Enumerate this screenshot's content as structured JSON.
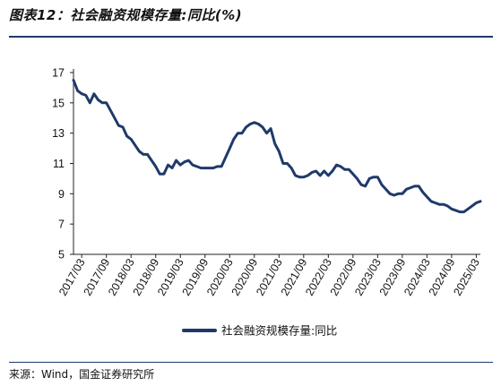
{
  "title": "图表12：社会融资规模存量:同比(%)",
  "source": "来源：Wind，国金证券研究所",
  "colors": {
    "line": "#1f3a6a",
    "rule": "#1f3a6a",
    "axis": "#222222"
  },
  "chart_data": {
    "type": "line",
    "title": "",
    "xlabel": "",
    "ylabel": "",
    "ylim": [
      5,
      17
    ],
    "yticks": [
      5,
      7,
      9,
      11,
      13,
      15,
      17
    ],
    "xticks": [
      "2017/03",
      "2017/09",
      "2018/03",
      "2018/09",
      "2019/03",
      "2019/09",
      "2020/03",
      "2020/09",
      "2021/03",
      "2021/09",
      "2022/03",
      "2022/09",
      "2023/03",
      "2023/09",
      "2024/03",
      "2024/09",
      "2025/03"
    ],
    "grid": false,
    "legend_position": "bottom-center",
    "series": [
      {
        "name": "社会融资规模存量:同比",
        "x": [
          "2017/01",
          "2017/02",
          "2017/03",
          "2017/04",
          "2017/05",
          "2017/06",
          "2017/07",
          "2017/08",
          "2017/09",
          "2017/10",
          "2017/11",
          "2017/12",
          "2018/01",
          "2018/02",
          "2018/03",
          "2018/04",
          "2018/05",
          "2018/06",
          "2018/07",
          "2018/08",
          "2018/09",
          "2018/10",
          "2018/11",
          "2018/12",
          "2019/01",
          "2019/02",
          "2019/03",
          "2019/04",
          "2019/05",
          "2019/06",
          "2019/07",
          "2019/08",
          "2019/09",
          "2019/10",
          "2019/11",
          "2019/12",
          "2020/01",
          "2020/02",
          "2020/03",
          "2020/04",
          "2020/05",
          "2020/06",
          "2020/07",
          "2020/08",
          "2020/09",
          "2020/10",
          "2020/11",
          "2020/12",
          "2021/01",
          "2021/02",
          "2021/03",
          "2021/04",
          "2021/05",
          "2021/06",
          "2021/07",
          "2021/08",
          "2021/09",
          "2021/10",
          "2021/11",
          "2021/12",
          "2022/01",
          "2022/02",
          "2022/03",
          "2022/04",
          "2022/05",
          "2022/06",
          "2022/07",
          "2022/08",
          "2022/09",
          "2022/10",
          "2022/11",
          "2022/12",
          "2023/01",
          "2023/02",
          "2023/03",
          "2023/04",
          "2023/05",
          "2023/06",
          "2023/07",
          "2023/08",
          "2023/09",
          "2023/10",
          "2023/11",
          "2023/12",
          "2024/01",
          "2024/02",
          "2024/03",
          "2024/04",
          "2024/05",
          "2024/06",
          "2024/07",
          "2024/08",
          "2024/09",
          "2024/10",
          "2024/11",
          "2024/12",
          "2025/01",
          "2025/02",
          "2025/03",
          "2025/04"
        ],
        "values": [
          16.5,
          15.8,
          15.6,
          15.5,
          15.0,
          15.6,
          15.2,
          15.0,
          15.0,
          14.5,
          14.0,
          13.5,
          13.4,
          12.8,
          12.6,
          12.2,
          11.8,
          11.6,
          11.6,
          11.2,
          10.8,
          10.3,
          10.3,
          10.9,
          10.7,
          11.2,
          10.9,
          11.1,
          11.2,
          10.9,
          10.8,
          10.7,
          10.7,
          10.7,
          10.7,
          10.8,
          10.8,
          11.4,
          12.0,
          12.6,
          13.0,
          13.0,
          13.4,
          13.6,
          13.7,
          13.6,
          13.4,
          13.0,
          13.3,
          12.3,
          11.8,
          11.0,
          11.0,
          10.7,
          10.2,
          10.1,
          10.1,
          10.2,
          10.4,
          10.5,
          10.2,
          10.5,
          10.2,
          10.5,
          10.9,
          10.8,
          10.6,
          10.6,
          10.3,
          10.0,
          9.6,
          9.5,
          10.0,
          10.1,
          10.1,
          9.6,
          9.3,
          9.0,
          8.9,
          9.0,
          9.0,
          9.3,
          9.4,
          9.5,
          9.5,
          9.1,
          8.8,
          8.5,
          8.4,
          8.3,
          8.3,
          8.2,
          8.0,
          7.9,
          7.8,
          7.8,
          8.0,
          8.2,
          8.4,
          8.5
        ]
      }
    ]
  }
}
